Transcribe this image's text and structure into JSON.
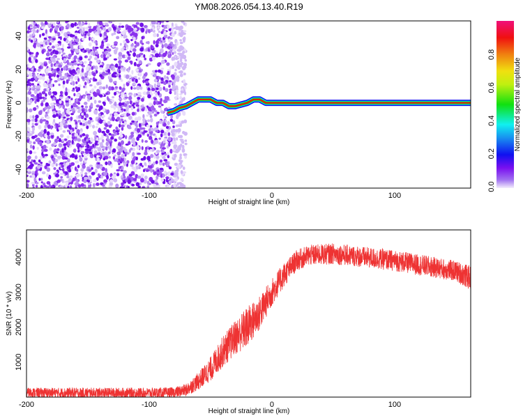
{
  "chart_data": [
    {
      "type": "heatmap",
      "title": "YM08.2026.054.13.40.R19",
      "xlabel": "Height of straight line (km)",
      "ylabel": "Frequency (Hz)",
      "xlim": [
        -200,
        162
      ],
      "ylim": [
        -51,
        49
      ],
      "xticks": [
        -200,
        -100,
        0,
        100
      ],
      "yticks": [
        -40,
        -20,
        0,
        20,
        40
      ],
      "noise_region_km": [
        -200,
        -76
      ],
      "track": {
        "x": [
          -85,
          -80,
          -75,
          -70,
          -65,
          -60,
          -55,
          -50,
          -45,
          -40,
          -35,
          -30,
          -25,
          -20,
          -15,
          -10,
          -5,
          0,
          20,
          60,
          100,
          140,
          162
        ],
        "y": [
          -6,
          -5,
          -3,
          -2,
          0,
          2,
          2,
          2,
          0,
          0,
          -2,
          -2,
          -1,
          0,
          2,
          2,
          0,
          0,
          0,
          0,
          0,
          0,
          0
        ]
      },
      "colorbar": {
        "label": "Normalized spectral amplitude",
        "range": [
          0,
          1
        ],
        "ticks": [
          "0.0",
          "0.2",
          "0.4",
          "0.6",
          "0.8"
        ]
      }
    },
    {
      "type": "line",
      "xlabel": "Height of straight line (km)",
      "ylabel": "SNR (10 * v/v)",
      "xlim": [
        -200,
        162
      ],
      "ylim": [
        0,
        4780
      ],
      "xticks": [
        -200,
        -100,
        0,
        100
      ],
      "yticks": [
        1000,
        2000,
        3000,
        4000
      ],
      "color": "#ee3333",
      "series": [
        {
          "name": "SNR",
          "x": [
            -200,
            -150,
            -100,
            -80,
            -70,
            -60,
            -50,
            -40,
            -30,
            -20,
            -10,
            0,
            10,
            20,
            30,
            50,
            100,
            150,
            162
          ],
          "y": [
            120,
            120,
            120,
            130,
            200,
            450,
            800,
            1300,
            1700,
            2000,
            2400,
            3000,
            3500,
            3900,
            4050,
            4100,
            3900,
            3600,
            3400
          ],
          "noise": [
            150,
            150,
            150,
            150,
            180,
            250,
            350,
            450,
            500,
            600,
            500,
            400,
            350,
            300,
            300,
            300,
            300,
            300,
            350
          ]
        }
      ]
    }
  ]
}
